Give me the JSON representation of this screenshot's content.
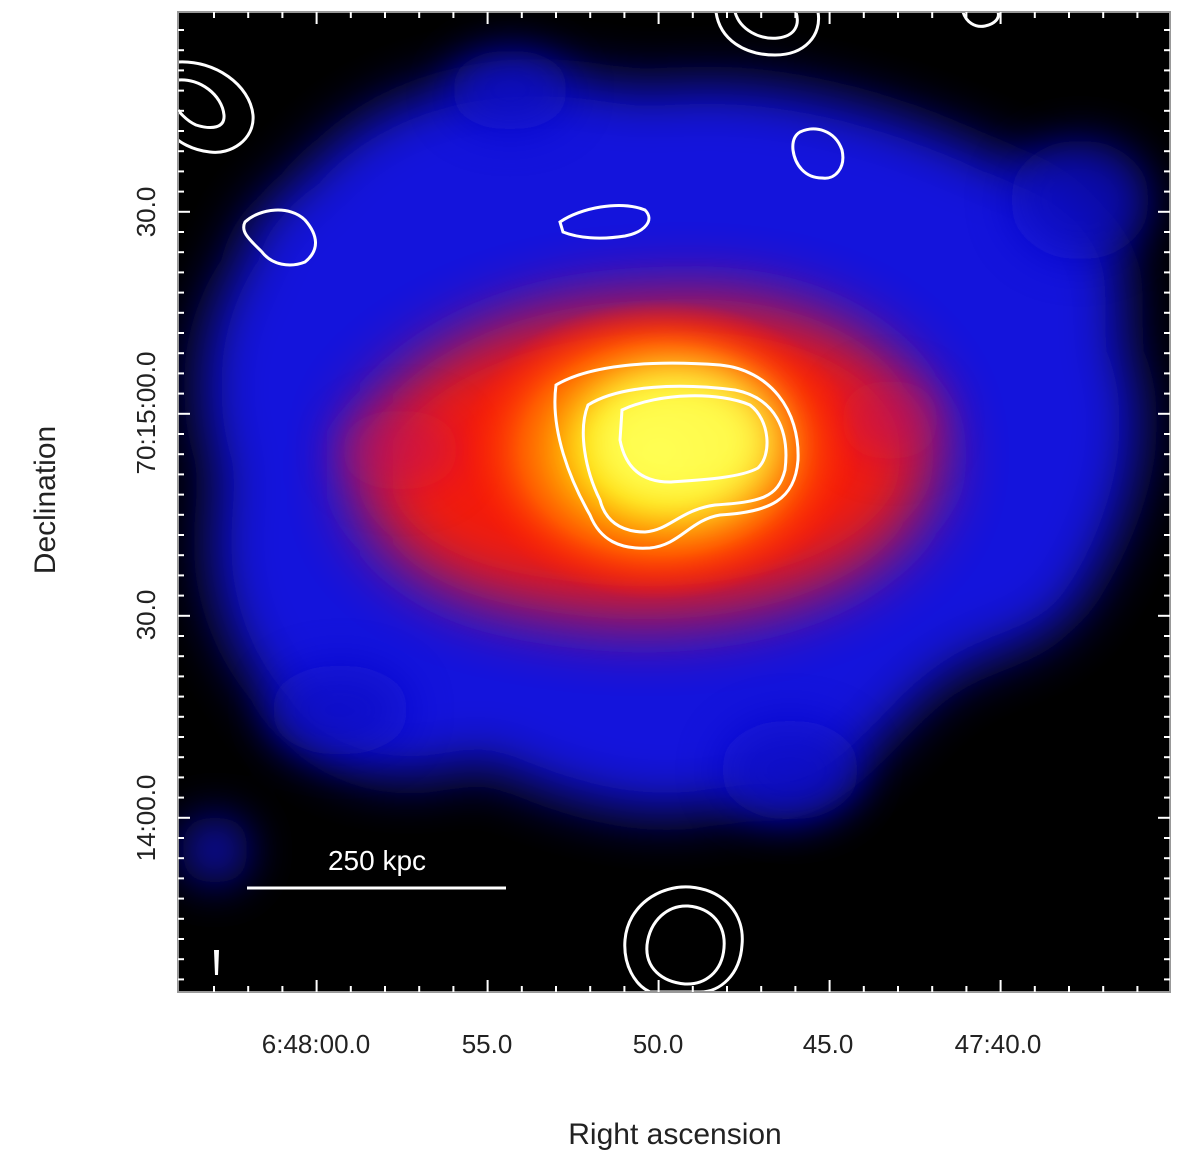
{
  "figure": {
    "xlabel": "Right ascension",
    "ylabel": "Declination",
    "x_ticks": [
      "6:48:00.0",
      "55.0",
      "50.0",
      "45.0",
      "47:40.0"
    ],
    "y_ticks": [
      "30.0",
      "70:15:00.0",
      "30.0",
      "14:00.0"
    ],
    "scalebar_label": "250 kpc",
    "colors": {
      "background": "#000000",
      "emission_low": "#1a1aff",
      "emission_mid": "#ff1a00",
      "emission_peak": "#ffff33",
      "contours": "#ffffff"
    },
    "image_description_icon": "x-ray-emission-map"
  }
}
